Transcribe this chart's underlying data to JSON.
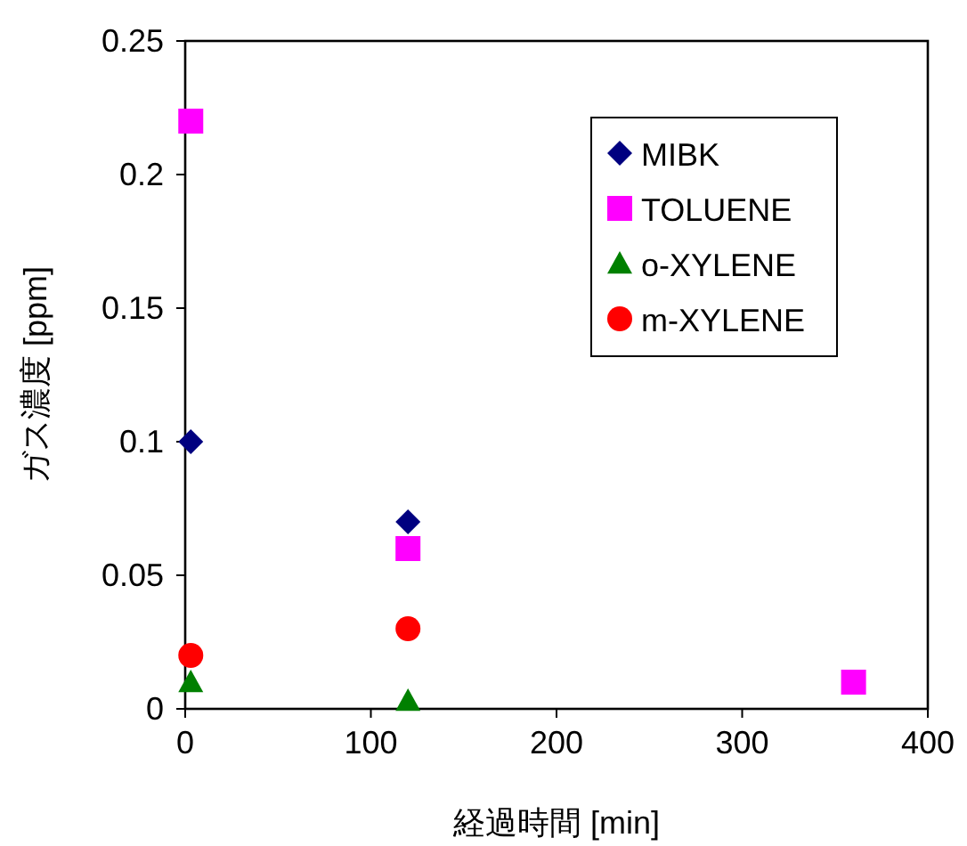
{
  "chart_data": {
    "type": "scatter",
    "xlabel": "経過時間 [min]",
    "ylabel": "ガス濃度 [ppm]",
    "xlim": [
      0,
      400
    ],
    "xticks": [
      0,
      100,
      200,
      300,
      400
    ],
    "ylim": [
      0,
      0.25
    ],
    "yticks": [
      0,
      0.05,
      0.1,
      0.15,
      0.2,
      0.25
    ],
    "grid": false,
    "legend": "top right",
    "series": [
      {
        "name": "MIBK",
        "color": "#000080",
        "marker": "diamond",
        "x": [
          3,
          120
        ],
        "values": [
          0.1,
          0.07
        ]
      },
      {
        "name": "TOLUENE",
        "color": "#ff00ff",
        "marker": "square",
        "x": [
          3,
          120,
          360
        ],
        "values": [
          0.22,
          0.06,
          0.01
        ]
      },
      {
        "name": "o-XYLENE",
        "color": "#008000",
        "marker": "triangle",
        "x": [
          3,
          120
        ],
        "values": [
          0.01,
          0.003
        ]
      },
      {
        "name": "m-XYLENE",
        "color": "#ff0000",
        "marker": "circle",
        "x": [
          3,
          120
        ],
        "values": [
          0.02,
          0.03
        ]
      }
    ]
  }
}
